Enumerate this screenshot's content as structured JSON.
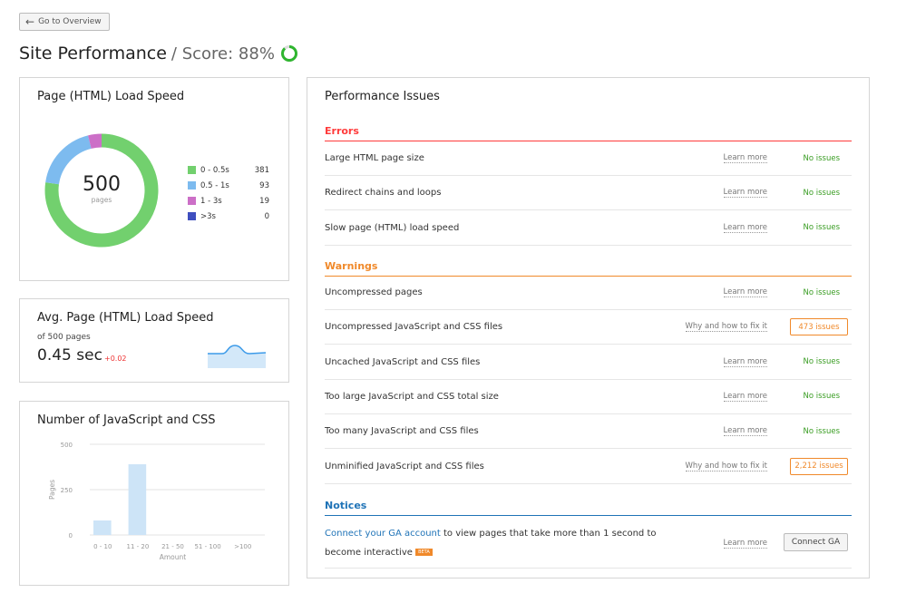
{
  "header": {
    "back_label": "Go to Overview",
    "title": "Site Performance",
    "score_label": "/ Score: 88%",
    "score_value": 88,
    "score_color": "#2fb52f"
  },
  "load_speed": {
    "title": "Page (HTML) Load Speed",
    "total": "500",
    "total_label": "pages",
    "chart_data": {
      "type": "pie",
      "categories": [
        "0 - 0.5s",
        "0.5 - 1s",
        "1 - 3s",
        ">3s"
      ],
      "values": [
        381,
        93,
        19,
        0
      ],
      "colors": [
        "#72d06e",
        "#7dbbef",
        "#cc6fc7",
        "#3f4fbf"
      ]
    }
  },
  "avg_speed": {
    "title": "Avg. Page (HTML) Load Speed",
    "subtitle": "of 500 pages",
    "value": "0.45 sec",
    "delta": "+0.02"
  },
  "js_css": {
    "title": "Number of JavaScript and CSS",
    "chart_data": {
      "type": "bar",
      "categories": [
        "0 - 10",
        "11 - 20",
        "21 - 50",
        "51 - 100",
        ">100"
      ],
      "values": [
        80,
        390,
        0,
        0,
        0
      ],
      "xlabel": "Amount",
      "ylabel": "Pages",
      "ylim": [
        0,
        500
      ],
      "yticks": [
        "500",
        "250",
        "0"
      ],
      "grid": true
    }
  },
  "issues": {
    "title": "Performance Issues",
    "errors": {
      "label": "Errors",
      "color": "#ff3b3b",
      "rows": [
        {
          "name": "Large HTML page size",
          "link": "Learn more",
          "status": "No issues"
        },
        {
          "name": "Redirect chains and loops",
          "link": "Learn more",
          "status": "No issues"
        },
        {
          "name": "Slow page (HTML) load speed",
          "link": "Learn more",
          "status": "No issues"
        }
      ]
    },
    "warnings": {
      "label": "Warnings",
      "color": "#f0892a",
      "rows": [
        {
          "name": "Uncompressed pages",
          "link": "Learn more",
          "status": "No issues"
        },
        {
          "name": "Uncompressed JavaScript and CSS files",
          "link": "Why and how to fix it",
          "issues": "473 issues"
        },
        {
          "name": "Uncached JavaScript and CSS files",
          "link": "Learn more",
          "status": "No issues"
        },
        {
          "name": "Too large JavaScript and CSS total size",
          "link": "Learn more",
          "status": "No issues"
        },
        {
          "name": "Too many JavaScript and CSS files",
          "link": "Learn more",
          "status": "No issues"
        },
        {
          "name": "Unminified JavaScript and CSS files",
          "link": "Why and how to fix it",
          "issues": "2,212 issues"
        }
      ]
    },
    "notices": {
      "label": "Notices",
      "color": "#1f73b7",
      "link_text": "Connect your GA account",
      "text": " to view pages that take more than 1 second to become interactive",
      "badge": "BETA",
      "learn": "Learn more",
      "button": "Connect GA"
    }
  }
}
